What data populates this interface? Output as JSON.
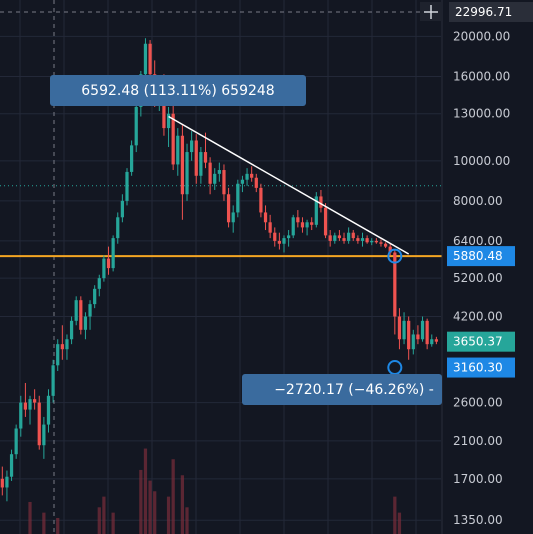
{
  "colors": {
    "background": "#131722",
    "grid": "#232838",
    "up": "#26a69a",
    "down": "#ef5350",
    "axis_text": "#c8cbd3",
    "horizontal_level": "#f5a623",
    "dotted_level": "#26a69a",
    "trendline": "#ffffff",
    "measure_box": "#3a6b9e",
    "price_tag_blue": "#1e88e5",
    "price_tag_green": "#26a69a"
  },
  "chart_data": {
    "type": "candlestick",
    "scale": "log",
    "y_ticks": [
      "20000.00",
      "16000.00",
      "13000.00",
      "10000.00",
      "8000.00",
      "6400.00",
      "5200.00",
      "4200.00",
      "2600.00",
      "2100.00",
      "1700.00",
      "1350.00"
    ],
    "y_tick_values": [
      20000,
      16000,
      13000,
      10000,
      8000,
      6400,
      5200,
      4200,
      2600,
      2100,
      1700,
      1350
    ],
    "ylim": [
      1250,
      24500
    ],
    "crosshair_price": "22996.71",
    "crosshair_icon": "crosshair-plus-icon",
    "price_labels": [
      {
        "value": "5880.48",
        "price": 5880.48,
        "style": "blue"
      },
      {
        "value": "3650.37",
        "price": 3650.37,
        "style": "green"
      },
      {
        "value": "3160.30",
        "price": 3160.3,
        "style": "blue"
      }
    ],
    "horizontal_level": 5880.48,
    "dotted_level": 8700,
    "measure_top": {
      "text": "6592.48 (113.11%) 659248"
    },
    "measure_bottom": {
      "text": "−2720.17 (−46.26%) -"
    },
    "trendline": {
      "from_index": 36,
      "from_price": 12800,
      "to_index": 88,
      "to_price": 5950
    },
    "measure_points": [
      {
        "index": 85,
        "price": 5880.48
      },
      {
        "index": 85,
        "price": 3160.3
      }
    ],
    "candles": [
      [
        1700,
        1820,
        1550,
        1620
      ],
      [
        1620,
        1780,
        1500,
        1720
      ],
      [
        1720,
        2000,
        1680,
        1950
      ],
      [
        1950,
        2300,
        1900,
        2250
      ],
      [
        2250,
        2700,
        2150,
        2600
      ],
      [
        2600,
        2900,
        2400,
        2500
      ],
      [
        2500,
        2700,
        2300,
        2650
      ],
      [
        2650,
        2800,
        2500,
        2600
      ],
      [
        2600,
        2700,
        2000,
        2050
      ],
      [
        2050,
        2400,
        1900,
        2300
      ],
      [
        2300,
        2800,
        2200,
        2700
      ],
      [
        2700,
        3300,
        2600,
        3200
      ],
      [
        3200,
        3700,
        3100,
        3600
      ],
      [
        3600,
        4000,
        3300,
        3500
      ],
      [
        3500,
        3800,
        3300,
        3700
      ],
      [
        3700,
        4200,
        3600,
        4100
      ],
      [
        4100,
        4700,
        4000,
        4600
      ],
      [
        4600,
        4700,
        3800,
        3900
      ],
      [
        3900,
        4300,
        3700,
        4200
      ],
      [
        4200,
        4600,
        3900,
        4500
      ],
      [
        4500,
        5000,
        4400,
        4900
      ],
      [
        4900,
        5300,
        4700,
        5200
      ],
      [
        5200,
        5900,
        5100,
        5800
      ],
      [
        5800,
        6200,
        5300,
        5500
      ],
      [
        5500,
        6600,
        5400,
        6500
      ],
      [
        6500,
        7500,
        6300,
        7300
      ],
      [
        7300,
        8300,
        7100,
        8000
      ],
      [
        8000,
        9600,
        7800,
        9400
      ],
      [
        9400,
        11200,
        9200,
        10900
      ],
      [
        10900,
        13800,
        10500,
        13500
      ],
      [
        13500,
        16500,
        12800,
        16200
      ],
      [
        16200,
        19800,
        15500,
        19200
      ],
      [
        19200,
        19600,
        15000,
        16200
      ],
      [
        16200,
        17500,
        13500,
        14300
      ],
      [
        14300,
        16000,
        13200,
        15500
      ],
      [
        15500,
        16200,
        11500,
        12000
      ],
      [
        12000,
        13500,
        10800,
        13000
      ],
      [
        13000,
        13800,
        9500,
        9800
      ],
      [
        9800,
        12000,
        9200,
        11500
      ],
      [
        11500,
        12200,
        7200,
        8300
      ],
      [
        8300,
        11000,
        8000,
        10500
      ],
      [
        10500,
        11800,
        10000,
        11200
      ],
      [
        11200,
        11600,
        8800,
        9200
      ],
      [
        9200,
        10800,
        8800,
        10500
      ],
      [
        10500,
        11700,
        9600,
        9900
      ],
      [
        9900,
        10200,
        8300,
        8800
      ],
      [
        8800,
        9600,
        8500,
        9300
      ],
      [
        9300,
        9900,
        8900,
        9500
      ],
      [
        9500,
        9800,
        8000,
        8300
      ],
      [
        8300,
        8600,
        6900,
        7100
      ],
      [
        7100,
        7800,
        6700,
        7500
      ],
      [
        7500,
        9000,
        7300,
        8800
      ],
      [
        8800,
        9200,
        8400,
        9000
      ],
      [
        9000,
        9600,
        8700,
        9300
      ],
      [
        9300,
        9700,
        8900,
        9100
      ],
      [
        9100,
        9300,
        8400,
        8600
      ],
      [
        8600,
        8800,
        7300,
        7500
      ],
      [
        7500,
        7800,
        6800,
        7100
      ],
      [
        7100,
        7400,
        6500,
        6700
      ],
      [
        6700,
        6900,
        6200,
        6400
      ],
      [
        6400,
        6700,
        6100,
        6300
      ],
      [
        6300,
        6600,
        6000,
        6500
      ],
      [
        6500,
        6800,
        6200,
        6600
      ],
      [
        6600,
        7400,
        6500,
        7300
      ],
      [
        7300,
        7600,
        6900,
        7100
      ],
      [
        7100,
        7300,
        6700,
        6900
      ],
      [
        6900,
        7200,
        6600,
        7100
      ],
      [
        7100,
        7300,
        6800,
        7000
      ],
      [
        7000,
        8400,
        6900,
        8200
      ],
      [
        8200,
        8500,
        7500,
        7700
      ],
      [
        7700,
        7900,
        6500,
        6600
      ],
      [
        6600,
        6800,
        6200,
        6400
      ],
      [
        6400,
        6700,
        6300,
        6600
      ],
      [
        6600,
        6800,
        6400,
        6500
      ],
      [
        6500,
        6700,
        6300,
        6400
      ],
      [
        6400,
        6900,
        6300,
        6700
      ],
      [
        6700,
        6800,
        6400,
        6500
      ],
      [
        6500,
        6600,
        6300,
        6400
      ],
      [
        6400,
        6700,
        6200,
        6500
      ],
      [
        6500,
        6600,
        6300,
        6350
      ],
      [
        6350,
        6500,
        6250,
        6400
      ],
      [
        6400,
        6500,
        6300,
        6350
      ],
      [
        6350,
        6450,
        6200,
        6300
      ],
      [
        6300,
        6350,
        6150,
        6200
      ],
      [
        6200,
        6300,
        5900,
        6000
      ],
      [
        6000,
        6100,
        3800,
        4200
      ],
      [
        4200,
        4400,
        3500,
        3700
      ],
      [
        3700,
        4300,
        3600,
        4100
      ],
      [
        4100,
        4200,
        3300,
        3500
      ],
      [
        3500,
        3900,
        3400,
        3800
      ],
      [
        3800,
        4000,
        3600,
        3700
      ],
      [
        3700,
        4200,
        3650,
        4100
      ],
      [
        4100,
        4150,
        3500,
        3600
      ],
      [
        3600,
        3800,
        3550,
        3700
      ],
      [
        3700,
        3750,
        3600,
        3650
      ]
    ],
    "volume_bars": [
      {
        "index": 6,
        "level": 0.06
      },
      {
        "index": 9,
        "level": 0.04
      },
      {
        "index": 12,
        "level": 0.03
      },
      {
        "index": 21,
        "level": 0.05
      },
      {
        "index": 22,
        "level": 0.07
      },
      {
        "index": 24,
        "level": 0.04
      },
      {
        "index": 30,
        "level": 0.12
      },
      {
        "index": 31,
        "level": 0.16
      },
      {
        "index": 32,
        "level": 0.1
      },
      {
        "index": 33,
        "level": 0.08
      },
      {
        "index": 36,
        "level": 0.07
      },
      {
        "index": 37,
        "level": 0.14
      },
      {
        "index": 39,
        "level": 0.11
      },
      {
        "index": 40,
        "level": 0.05
      },
      {
        "index": 85,
        "level": 0.07
      },
      {
        "index": 86,
        "level": 0.04
      }
    ]
  }
}
